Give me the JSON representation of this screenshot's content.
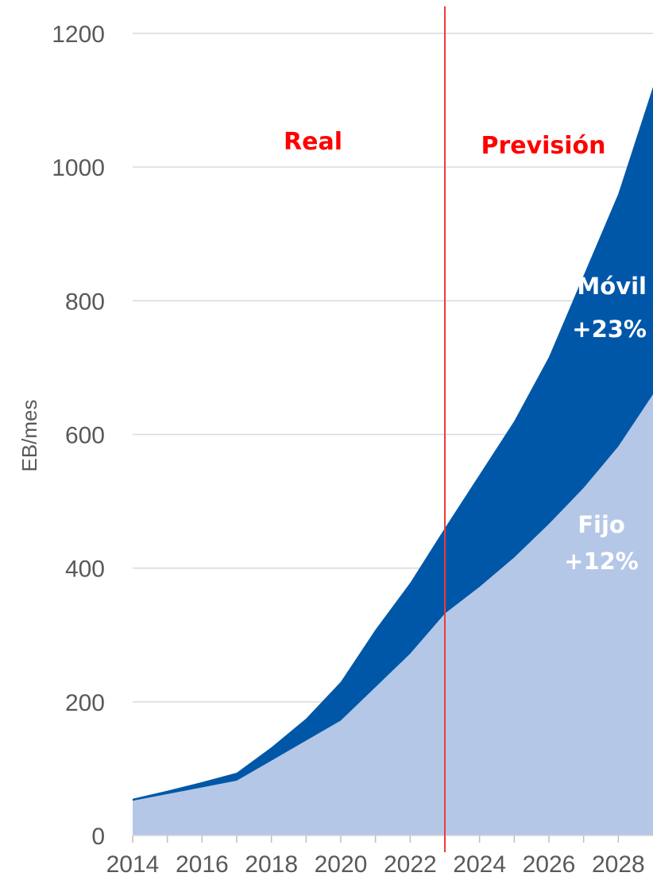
{
  "chart_data": {
    "type": "area",
    "stacked": true,
    "ylabel": "EB/mes",
    "xlabel": "",
    "ylim": [
      0,
      1200
    ],
    "yticks": [
      "0",
      "200",
      "400",
      "600",
      "800",
      "1000",
      "1200"
    ],
    "xlim": [
      2014,
      2029
    ],
    "xtick_labels": [
      "2014",
      "2016",
      "2018",
      "2020",
      "2022",
      "2024",
      "2026",
      "2028"
    ],
    "grid": "horizontal",
    "x": [
      2014,
      2015,
      2016,
      2017,
      2018,
      2019,
      2020,
      2021,
      2022,
      2023,
      2024,
      2025,
      2026,
      2027,
      2028,
      2029
    ],
    "series": [
      {
        "name": "Fijo",
        "color": "#b4c7e7",
        "values": [
          52,
          62,
          72,
          82,
          112,
          142,
          172,
          222,
          272,
          332,
          372,
          416,
          466,
          520,
          582,
          660
        ]
      },
      {
        "name": "Móvil",
        "color": "#0057a8",
        "values": [
          3,
          5,
          8,
          12,
          20,
          33,
          58,
          86,
          106,
          128,
          168,
          204,
          250,
          318,
          378,
          460
        ]
      }
    ],
    "divider": {
      "x": 2023,
      "color": "#ee3b3b"
    },
    "annotations": {
      "real": "Real",
      "prevision": "Previsión",
      "movil_name": "Móvil",
      "movil_growth": "+23%",
      "fijo_name": "Fijo",
      "fijo_growth": "+12%"
    }
  }
}
